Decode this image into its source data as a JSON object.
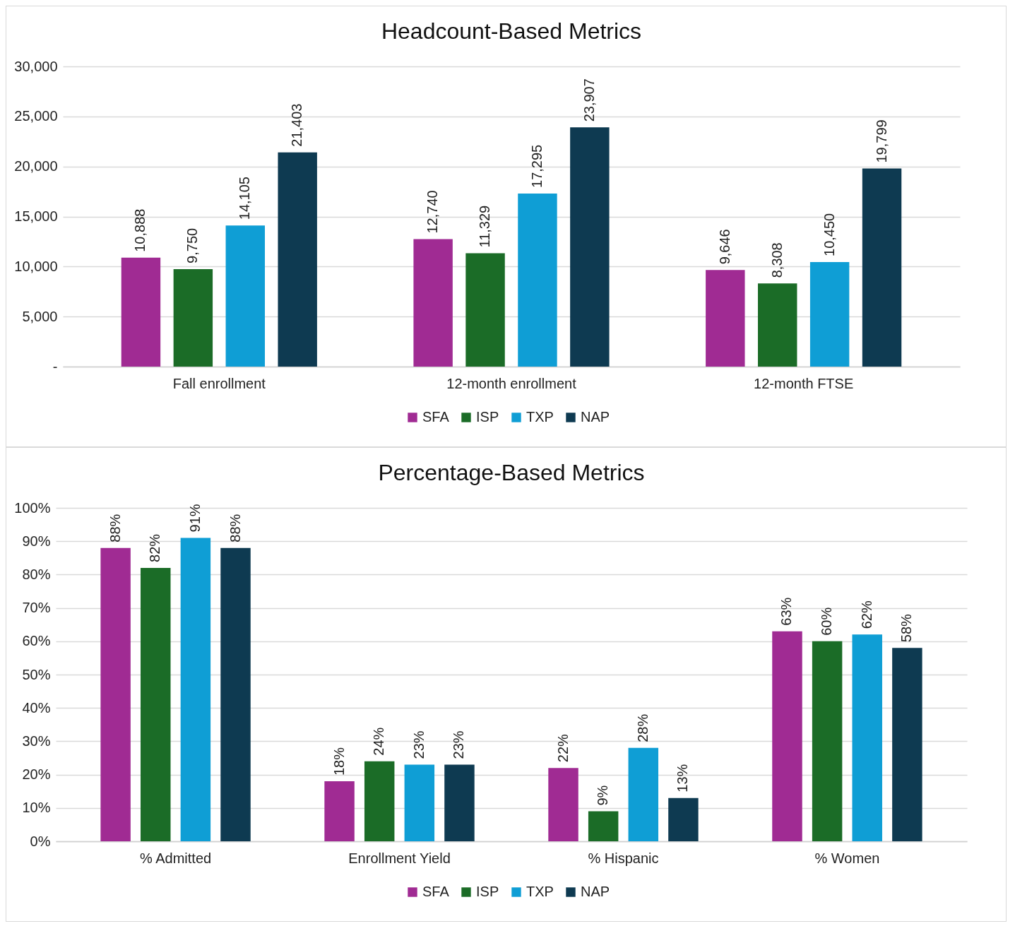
{
  "chart_data": [
    {
      "type": "bar",
      "title": "Headcount-Based Metrics",
      "categories": [
        "Fall enrollment",
        "12-month enrollment",
        "12-month FTSE"
      ],
      "series": [
        {
          "name": "SFA",
          "color": "#a02b93",
          "values": [
            10888,
            12740,
            9646
          ],
          "value_labels": [
            "10,888",
            "12,740",
            "9,646"
          ]
        },
        {
          "name": "ISP",
          "color": "#1b6c27",
          "values": [
            9750,
            11329,
            8308
          ],
          "value_labels": [
            "9,750",
            "11,329",
            "8,308"
          ]
        },
        {
          "name": "TXP",
          "color": "#0f9ed5",
          "values": [
            14105,
            17295,
            10450
          ],
          "value_labels": [
            "14,105",
            "17,295",
            "10,450"
          ]
        },
        {
          "name": "NAP",
          "color": "#0e3a51",
          "values": [
            21403,
            23907,
            19799
          ],
          "value_labels": [
            "21,403",
            "23,907",
            "19,799"
          ]
        }
      ],
      "ylim": [
        0,
        30000
      ],
      "yticks": [
        {
          "value": 0,
          "label": "-"
        },
        {
          "value": 5000,
          "label": "5,000"
        },
        {
          "value": 10000,
          "label": "10,000"
        },
        {
          "value": 15000,
          "label": "15,000"
        },
        {
          "value": 20000,
          "label": "20,000"
        },
        {
          "value": 25000,
          "label": "25,000"
        },
        {
          "value": 30000,
          "label": "30,000"
        }
      ],
      "grid": "y",
      "legend": "bottom"
    },
    {
      "type": "bar",
      "title": "Percentage-Based Metrics",
      "categories": [
        "% Admitted",
        "Enrollment Yield",
        "% Hispanic",
        "% Women"
      ],
      "series": [
        {
          "name": "SFA",
          "color": "#a02b93",
          "values": [
            88,
            18,
            22,
            63
          ],
          "value_labels": [
            "88%",
            "18%",
            "22%",
            "63%"
          ]
        },
        {
          "name": "ISP",
          "color": "#1b6c27",
          "values": [
            82,
            24,
            9,
            60
          ],
          "value_labels": [
            "82%",
            "24%",
            "9%",
            "60%"
          ]
        },
        {
          "name": "TXP",
          "color": "#0f9ed5",
          "values": [
            91,
            23,
            28,
            62
          ],
          "value_labels": [
            "91%",
            "23%",
            "28%",
            "62%"
          ]
        },
        {
          "name": "NAP",
          "color": "#0e3a51",
          "values": [
            88,
            23,
            13,
            58
          ],
          "value_labels": [
            "88%",
            "23%",
            "13%",
            "58%"
          ]
        }
      ],
      "ylim": [
        0,
        100
      ],
      "yticks": [
        {
          "value": 0,
          "label": "0%"
        },
        {
          "value": 10,
          "label": "10%"
        },
        {
          "value": 20,
          "label": "20%"
        },
        {
          "value": 30,
          "label": "30%"
        },
        {
          "value": 40,
          "label": "40%"
        },
        {
          "value": 50,
          "label": "50%"
        },
        {
          "value": 60,
          "label": "60%"
        },
        {
          "value": 70,
          "label": "70%"
        },
        {
          "value": 80,
          "label": "80%"
        },
        {
          "value": 90,
          "label": "90%"
        },
        {
          "value": 100,
          "label": "100%"
        }
      ],
      "grid": "y",
      "legend": "bottom"
    }
  ]
}
